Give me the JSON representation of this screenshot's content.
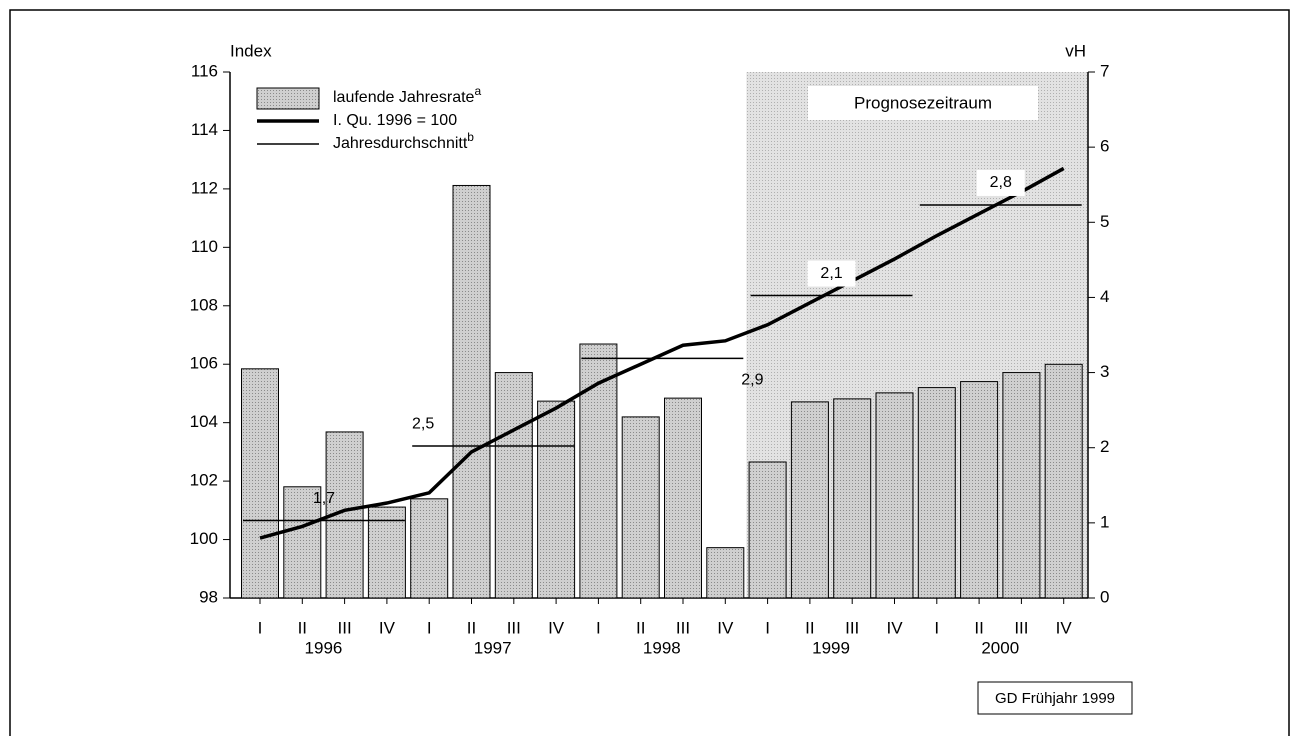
{
  "chart_data": {
    "type": "bar",
    "y_label": "Index",
    "y2_label": "vH",
    "quarters": [
      "I",
      "II",
      "III",
      "IV",
      "I",
      "II",
      "III",
      "IV",
      "I",
      "II",
      "III",
      "IV",
      "I",
      "II",
      "III",
      "IV",
      "I",
      "II",
      "III",
      "IV"
    ],
    "years": [
      "1996",
      "1997",
      "1998",
      "1999",
      "2000"
    ],
    "ylim": [
      98,
      116
    ],
    "yticks": [
      98,
      100,
      102,
      104,
      106,
      108,
      110,
      112,
      114,
      116
    ],
    "y2lim": [
      0,
      7
    ],
    "y2ticks": [
      0,
      1,
      2,
      3,
      4,
      5,
      6,
      7
    ],
    "series": [
      {
        "name": "laufende Jahresrate",
        "sup": "a",
        "type": "bar",
        "axis": "y2",
        "color": "#c8c8c8",
        "values": [
          3.05,
          1.48,
          2.21,
          1.21,
          1.32,
          5.49,
          3.0,
          2.62,
          3.38,
          2.41,
          2.66,
          0.67,
          1.81,
          2.61,
          2.65,
          2.73,
          2.8,
          2.88,
          3.0,
          3.11
        ]
      },
      {
        "name": "I. Qu. 1996 = 100",
        "type": "line",
        "color": "#000000",
        "values": [
          100.05,
          100.45,
          101.0,
          101.25,
          101.6,
          103.0,
          103.75,
          104.5,
          105.35,
          106.0,
          106.65,
          106.8,
          107.35,
          108.1,
          108.85,
          109.6,
          110.4,
          111.15,
          111.9,
          112.7
        ]
      },
      {
        "name": "Jahresdurchschnitt",
        "sup": "b",
        "type": "annual",
        "color": "#000000",
        "values": [
          100.65,
          103.2,
          106.2,
          108.35,
          111.45
        ],
        "value_labels": [
          "1,7",
          "2,5",
          "2,9",
          "2,1",
          "2,8"
        ]
      }
    ],
    "forecast": {
      "label": "Prognosezeitraum",
      "from_year": "1999"
    },
    "source": "GD Frühjahr 1999"
  }
}
